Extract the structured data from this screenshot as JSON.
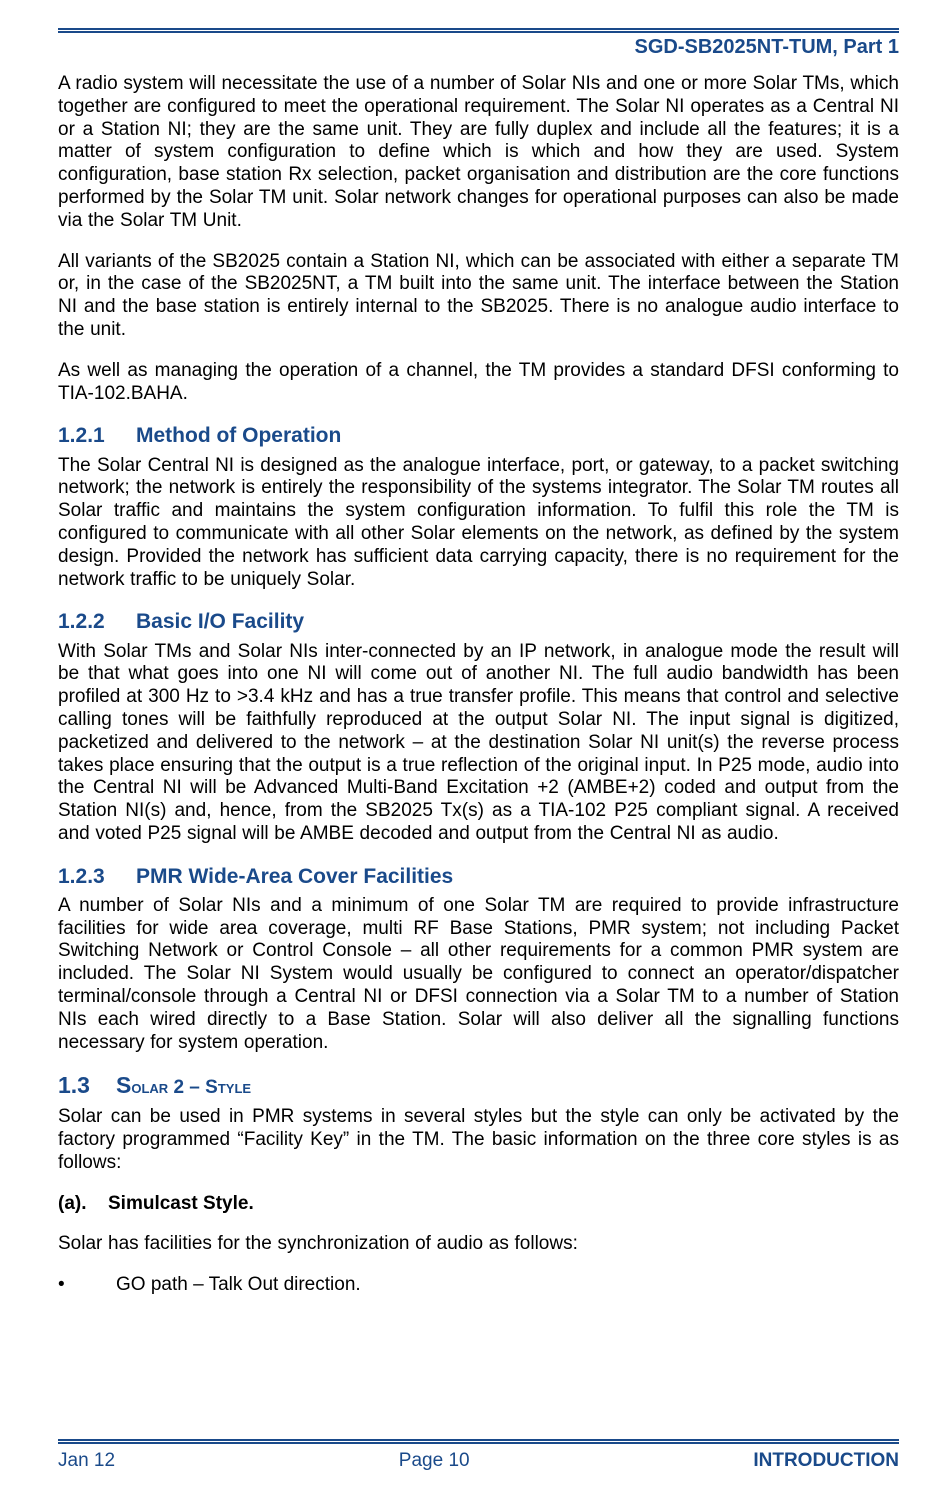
{
  "doc_header": "SGD-SB2025NT-TUM, Part 1",
  "paras": {
    "p1": "A radio system will necessitate the use of a number of Solar NIs and one or more Solar TMs, which together are configured to meet the operational requirement.  The Solar NI operates as a Central NI or a Station NI; they are the same unit.  They are fully duplex and include all the features; it is a matter of system configuration to define which is which and how they are used.  System configuration, base station Rx selection, packet organisation and distribution are the core functions performed by the Solar TM unit.  Solar network changes for operational purposes can also be made via the Solar TM Unit.",
    "p2": "All variants of the SB2025 contain a Station NI, which can be associated with either a separate TM or, in the case of the SB2025NT, a TM built into the same unit.  The interface between the Station NI and the base station is entirely internal to the SB2025.  There is no analogue audio interface to the unit.",
    "p3": "As well as managing the operation of a channel, the TM provides a standard DFSI conforming to TIA-102.BAHA."
  },
  "sections": {
    "s121": {
      "num": "1.2.1",
      "title": "Method of Operation",
      "body": "The Solar Central NI is designed as the analogue interface, port, or gateway, to a packet switching network; the network is entirely the responsibility of the systems integrator.  The Solar TM routes all Solar traffic and maintains the system configuration information.  To fulfil this role the TM is configured to communicate with all other Solar elements on the network, as defined by the system design.  Provided the network has sufficient data carrying capacity, there is no requirement for the network traffic to be uniquely Solar."
    },
    "s122": {
      "num": "1.2.2",
      "title": "Basic I/O Facility",
      "body": "With Solar TMs and Solar NIs inter-connected by an IP network, in analogue mode the result will be that what goes into one NI will come out of another NI.  The full audio bandwidth has been profiled at 300 Hz to >3.4 kHz and has a true transfer profile.  This means that control and selective calling tones will be faithfully reproduced at the output Solar NI.  The input signal is digitized, packetized and delivered to the network – at the destination Solar NI unit(s) the reverse process takes place ensuring that the output is a true reflection of the original input.  In P25 mode, audio into the Central NI will be Advanced Multi-Band Excitation +2 (AMBE+2) coded and output from the Station NI(s) and, hence, from the SB2025 Tx(s) as a TIA-102 P25 compliant signal.  A received and voted P25 signal will be AMBE decoded and output from the Central NI as audio."
    },
    "s123": {
      "num": "1.2.3",
      "title": "PMR Wide-Area Cover Facilities",
      "body": "A number of Solar NIs and a minimum of one Solar TM are required to provide infrastructure facilities for wide area coverage, multi RF Base Stations, PMR system; not including Packet Switching Network or Control Console – all other requirements for a common PMR system are included.  The Solar NI System would usually be configured to connect an operator/dispatcher terminal/console through a Central NI or DFSI connection via a Solar TM to a number of Station NIs each wired directly to a Base Station.  Solar will also deliver all the signalling functions necessary for system operation."
    }
  },
  "h2": {
    "num": "1.3",
    "lead": "S",
    "rest_a": "olar 2 – S",
    "rest_b": "tyle",
    "body": "Solar can be used in PMR systems in several styles but the style can only be activated by the factory programmed “Facility Key” in the TM.  The basic information on the three core styles is as follows:"
  },
  "sub_a": {
    "label": "(a).",
    "title": "Simulcast Style."
  },
  "sync_intro": "Solar has facilities for the synchronization of audio as follows:",
  "bullet1": "GO path – Talk Out direction.",
  "footer": {
    "date": "Jan 12",
    "page": "Page 10",
    "section": "INTRODUCTION"
  }
}
